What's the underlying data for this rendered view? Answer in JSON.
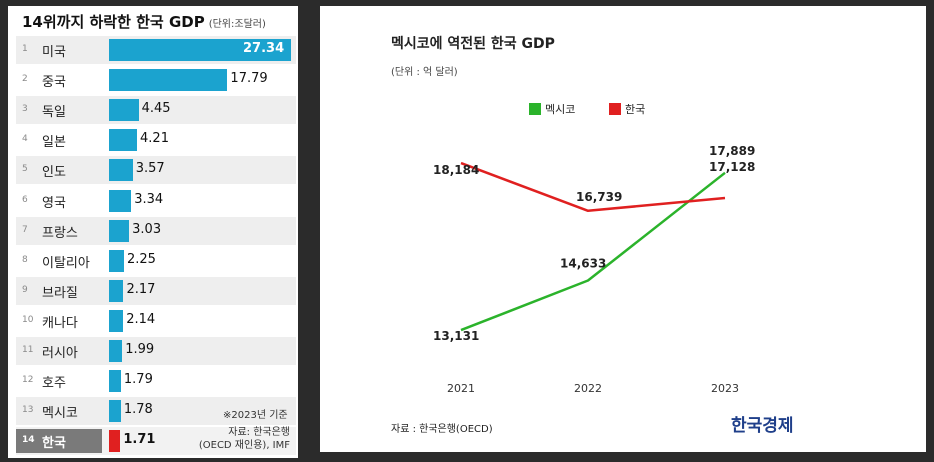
{
  "left_chart": {
    "title": "14위까지 하락한 한국 GDP",
    "unit": "(단위:조달러)",
    "basis_note": "※2023년 기준",
    "source_line1": "자료: 한국은행",
    "source_line2": "(OECD 재인용), IMF",
    "highlight_color": "#e02020",
    "bar_color": "#1ba3cf"
  },
  "right_chart": {
    "brand": "한국경제",
    "source": "자료 : 한국은행(OECD)"
  },
  "chart_data": [
    {
      "type": "bar",
      "orientation": "horizontal",
      "title": "14위까지 하락한 한국 GDP",
      "unit": "단위:조달러",
      "ranks": [
        "1",
        "2",
        "3",
        "4",
        "5",
        "6",
        "7",
        "8",
        "9",
        "10",
        "11",
        "12",
        "13",
        "14"
      ],
      "categories": [
        "미국",
        "중국",
        "독일",
        "일본",
        "인도",
        "영국",
        "프랑스",
        "이탈리아",
        "브라질",
        "캐나다",
        "러시아",
        "호주",
        "멕시코",
        "한국"
      ],
      "values": [
        27.34,
        17.79,
        4.45,
        4.21,
        3.57,
        3.34,
        3.03,
        2.25,
        2.17,
        2.14,
        1.99,
        1.79,
        1.78,
        1.71
      ],
      "value_labels": [
        "27.34",
        "17.79",
        "4.45",
        "4.21",
        "3.57",
        "3.34",
        "3.03",
        "2.25",
        "2.17",
        "2.14",
        "1.99",
        "1.79",
        "1.78",
        "1.71"
      ],
      "highlight": "한국",
      "xlim": [
        0,
        27.34
      ]
    },
    {
      "type": "line",
      "title": "멕시코에 역전된 한국 GDP",
      "unit": "(단위 : 억 달러)",
      "x": [
        "2021",
        "2022",
        "2023"
      ],
      "series": [
        {
          "name": "멕시코",
          "color": "#2bb32b",
          "values": [
            13131,
            14633,
            17889
          ],
          "labels": [
            "13,131",
            "14,633",
            "17,889"
          ]
        },
        {
          "name": "한국",
          "color": "#e02020",
          "values": [
            18184,
            16739,
            17128
          ],
          "labels": [
            "18,184",
            "16,739",
            "17,128"
          ]
        }
      ],
      "ylim": [
        12500,
        18700
      ],
      "legend": "top-left"
    }
  ]
}
